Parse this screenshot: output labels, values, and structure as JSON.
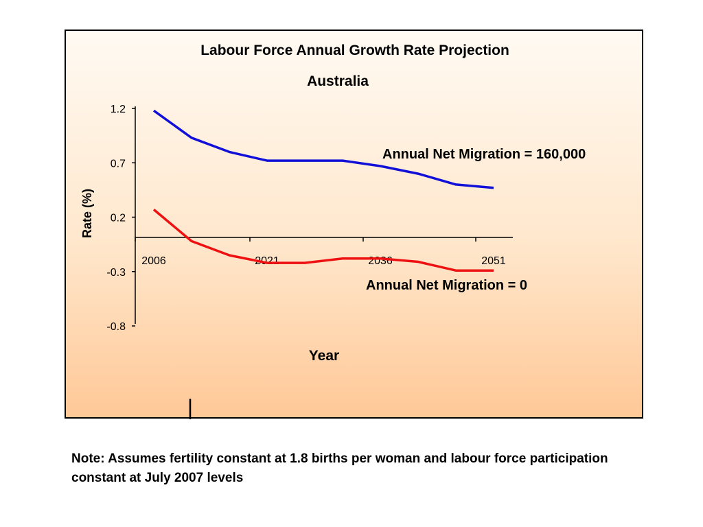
{
  "chart_data": {
    "type": "line",
    "title": "Labour Force Annual Growth Rate Projection",
    "subtitle": "Australia",
    "xlabel": "Year",
    "ylabel": "Rate (%)",
    "x": [
      2006,
      2011,
      2016,
      2021,
      2026,
      2031,
      2036,
      2041,
      2046,
      2051
    ],
    "x_tick_labels": [
      "2006",
      "2021",
      "2036",
      "2051"
    ],
    "y_ticks": [
      1.2,
      0.7,
      0.2,
      -0.3,
      -0.8
    ],
    "y_tick_labels": [
      "1.2",
      "0.7",
      "0.2",
      "-0.3",
      "-0.8"
    ],
    "ylim": [
      -0.8,
      1.2
    ],
    "series": [
      {
        "name": "Annual Net Migration = 160,000",
        "color": "#1010d8",
        "values": [
          1.18,
          0.93,
          0.8,
          0.72,
          0.72,
          0.72,
          0.67,
          0.6,
          0.5,
          0.47
        ]
      },
      {
        "name": "Annual Net Migration = 0",
        "color": "#ee1111",
        "values": [
          0.27,
          -0.02,
          -0.15,
          -0.22,
          -0.22,
          -0.18,
          -0.18,
          -0.21,
          -0.29,
          -0.29
        ]
      }
    ],
    "grid": false,
    "legend": "inline labels"
  },
  "note": "Note: Assumes fertility constant at 1.8 births per woman and labour force participation constant at July 2007 levels"
}
